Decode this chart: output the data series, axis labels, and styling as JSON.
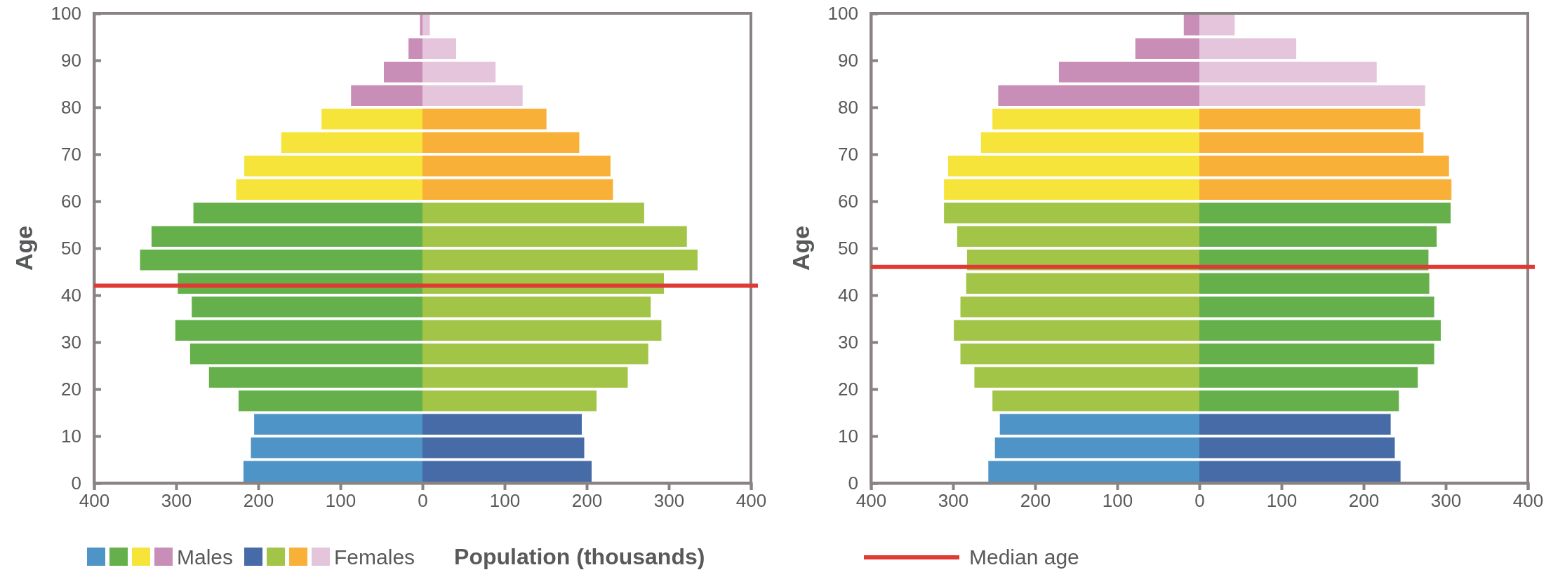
{
  "chart_data": [
    {
      "type": "bar",
      "orientation": "horizontal",
      "stacked": true,
      "ylabel": "Age",
      "xlabel": "Population (thousands)",
      "legend": "bottom",
      "xlim": [
        -400,
        400
      ],
      "xticks": [
        {
          "value": -400,
          "label": "400"
        },
        {
          "value": -300,
          "label": "300"
        },
        {
          "value": -200,
          "label": "200"
        },
        {
          "value": -100,
          "label": "100"
        },
        0,
        100,
        200,
        300,
        400
      ],
      "ylim": [
        0,
        100
      ],
      "yticks": [
        0,
        10,
        20,
        30,
        40,
        50,
        60,
        70,
        80,
        90,
        100
      ],
      "x": [
        2.5,
        7.5,
        12.5,
        17.5,
        22.5,
        27.5,
        32.5,
        37.5,
        42.5,
        47.5,
        52.5,
        57.5,
        62.5,
        67.5,
        72.5,
        77.5,
        82.5,
        87.5,
        92.5,
        97.5
      ],
      "series": [
        {
          "name": "Males",
          "values": [
            -218,
            -209,
            -205,
            -224,
            -260,
            -283,
            -301,
            -281,
            -298,
            -344,
            -330,
            -279,
            -227,
            -217,
            -172,
            -123,
            -87,
            -47,
            -17,
            -3
          ],
          "colors": [
            "#4f94c6",
            "#4f94c6",
            "#4f94c6",
            "#65b04a",
            "#65b04a",
            "#65b04a",
            "#65b04a",
            "#65b04a",
            "#65b04a",
            "#65b04a",
            "#65b04a",
            "#65b04a",
            "#f6e43a",
            "#f6e43a",
            "#f6e43a",
            "#f6e43a",
            "#c98eb8",
            "#c98eb8",
            "#c98eb8",
            "#c98eb8"
          ]
        },
        {
          "name": "Females",
          "values": [
            206,
            197,
            194,
            212,
            250,
            275,
            291,
            278,
            294,
            335,
            322,
            270,
            232,
            229,
            191,
            151,
            122,
            89,
            41,
            9
          ],
          "colors": [
            "#466ba6",
            "#466ba6",
            "#466ba6",
            "#a3c547",
            "#a3c547",
            "#a3c547",
            "#a3c547",
            "#a3c547",
            "#a3c547",
            "#a3c547",
            "#a3c547",
            "#a3c547",
            "#f8b038",
            "#f8b038",
            "#f8b038",
            "#f8b038",
            "#e5c5db",
            "#e5c5db",
            "#e5c5db",
            "#e5c5db"
          ]
        }
      ],
      "ref_lines": [
        {
          "axis": "y",
          "value": 42,
          "color": "#e03a34"
        }
      ]
    },
    {
      "type": "bar",
      "orientation": "horizontal",
      "stacked": true,
      "ylabel": "Age",
      "legend": "bottom",
      "xlim": [
        -400,
        400
      ],
      "xticks": [
        {
          "value": -400,
          "label": "400"
        },
        {
          "value": -300,
          "label": "300"
        },
        {
          "value": -200,
          "label": "200"
        },
        {
          "value": -100,
          "label": "100"
        },
        0,
        100,
        200,
        300,
        400
      ],
      "ylim": [
        0,
        100
      ],
      "yticks": [
        0,
        10,
        20,
        30,
        40,
        50,
        60,
        70,
        80,
        90,
        100
      ],
      "x": [
        2.5,
        7.5,
        12.5,
        17.5,
        22.5,
        27.5,
        32.5,
        37.5,
        42.5,
        47.5,
        52.5,
        57.5,
        62.5,
        67.5,
        72.5,
        77.5,
        82.5,
        87.5,
        92.5,
        97.5
      ],
      "series": [
        {
          "values": [
            -257,
            -249,
            -243,
            -252,
            -274,
            -291,
            -299,
            -291,
            -284,
            -283,
            -295,
            -311,
            -311,
            -306,
            -266,
            -252,
            -245,
            -171,
            -78,
            -19
          ],
          "colors": [
            "#4f94c6",
            "#4f94c6",
            "#4f94c6",
            "#a3c547",
            "#a3c547",
            "#a3c547",
            "#a3c547",
            "#a3c547",
            "#a3c547",
            "#a3c547",
            "#a3c547",
            "#a3c547",
            "#f6e43a",
            "#f6e43a",
            "#f6e43a",
            "#f6e43a",
            "#c98eb8",
            "#c98eb8",
            "#c98eb8",
            "#c98eb8"
          ]
        },
        {
          "values": [
            245,
            238,
            233,
            243,
            266,
            286,
            294,
            286,
            280,
            279,
            289,
            306,
            307,
            304,
            273,
            269,
            275,
            216,
            118,
            43
          ],
          "colors": [
            "#466ba6",
            "#466ba6",
            "#466ba6",
            "#65b04a",
            "#65b04a",
            "#65b04a",
            "#65b04a",
            "#65b04a",
            "#65b04a",
            "#65b04a",
            "#65b04a",
            "#65b04a",
            "#f8b038",
            "#f8b038",
            "#f8b038",
            "#f8b038",
            "#e5c5db",
            "#e5c5db",
            "#e5c5db",
            "#e5c5db"
          ]
        }
      ],
      "ref_lines": [
        {
          "axis": "y",
          "value": 46,
          "label": "Median age",
          "color": "#e03a34"
        }
      ]
    }
  ]
}
